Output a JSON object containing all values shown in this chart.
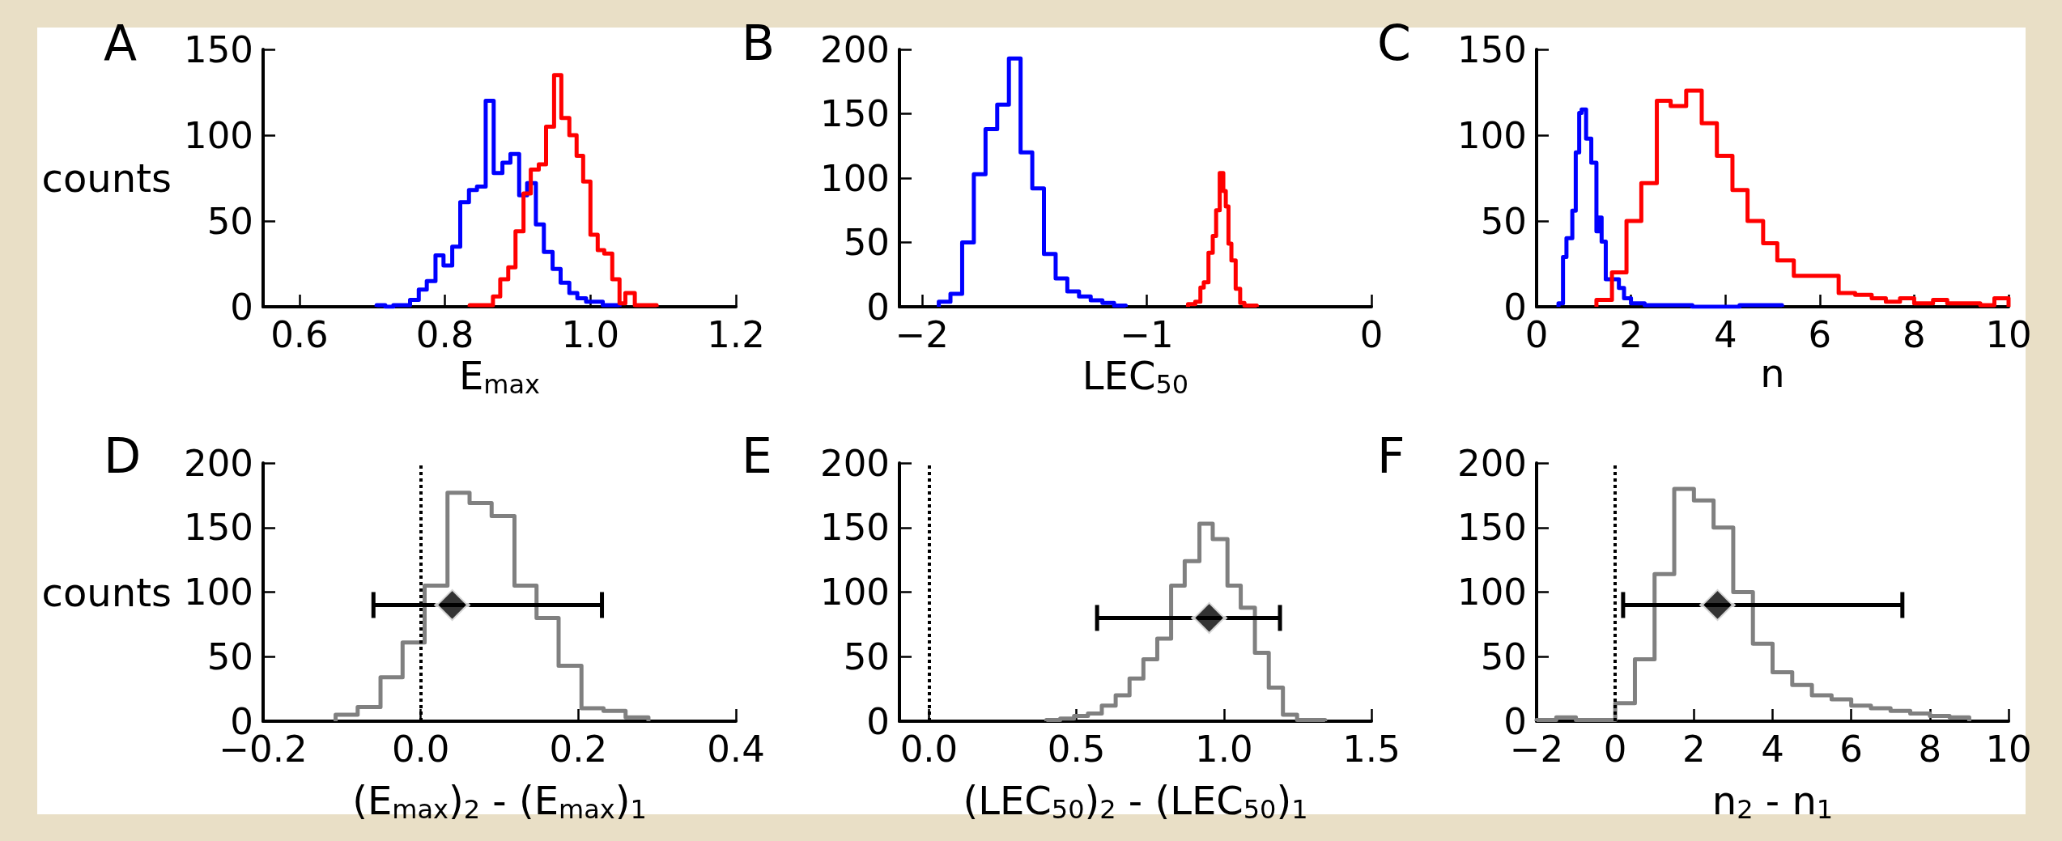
{
  "chart_data": [
    {
      "type": "histogram",
      "title": "A",
      "xlabel": "E$_{max}$",
      "ylabel": "counts",
      "xlim": [
        0.55,
        1.2
      ],
      "xticks": [
        0.6,
        0.8,
        {
          "value": 1,
          "label": "1.0"
        },
        1.2
      ],
      "ylim": [
        0,
        150
      ],
      "yticks": [
        0,
        50,
        100,
        150
      ],
      "bins": [
        0.706,
        0.718,
        0.729,
        0.741,
        0.752,
        0.764,
        0.775,
        0.787,
        0.798,
        0.81,
        0.821,
        0.833,
        0.844,
        0.856,
        0.867,
        0.879,
        0.89,
        0.902,
        0.913,
        0.925,
        0.936,
        0.948,
        0.959,
        0.971,
        0.982,
        0.994,
        1.005,
        1.017,
        1.028,
        1.04
      ],
      "series": [
        {
          "color": "#0000ff",
          "values": [
            1,
            0,
            1,
            1,
            4,
            10,
            15,
            30,
            24,
            35,
            61,
            68,
            70,
            120,
            78,
            84,
            89,
            65,
            72,
            48,
            32,
            22,
            14,
            8,
            5,
            3,
            3,
            1,
            1
          ]
        },
        {
          "color": "#ff0000",
          "bins": [
            0.834,
            0.845,
            0.855,
            0.866,
            0.876,
            0.887,
            0.897,
            0.908,
            0.918,
            0.929,
            0.939,
            0.95,
            0.96,
            0.971,
            0.981,
            0.99,
            1.0,
            1.01,
            1.019,
            1.03,
            1.04,
            1.048,
            1.061,
            1.091
          ],
          "values": [
            1,
            1,
            1,
            6,
            16,
            23,
            44,
            66,
            80,
            83,
            105,
            135,
            110,
            100,
            88,
            73,
            42,
            33,
            31,
            16,
            2,
            8,
            1
          ]
        }
      ]
    },
    {
      "type": "histogram",
      "title": "B",
      "xlabel": "LEC$_{50}$",
      "xlim": [
        -2.1,
        0
      ],
      "xticks": [
        {
          "value": -2,
          "label": "−2"
        },
        {
          "value": -1,
          "label": "−1"
        },
        0
      ],
      "ylim": [
        0,
        200
      ],
      "yticks": [
        0,
        50,
        100,
        150,
        200
      ],
      "bins": [
        -1.925,
        -1.873,
        -1.821,
        -1.769,
        -1.717,
        -1.665,
        -1.613,
        -1.561,
        -1.509,
        -1.457,
        -1.405,
        -1.353,
        -1.301,
        -1.249,
        -1.197,
        -1.145,
        -1.093
      ],
      "series": [
        {
          "color": "#0000ff",
          "values": [
            4,
            10,
            50,
            103,
            138,
            157,
            193,
            120,
            92,
            41,
            22,
            12,
            8,
            5,
            3,
            1
          ]
        },
        {
          "color": "#ff0000",
          "bins": [
            -0.816,
            -0.784,
            -0.761,
            -0.746,
            -0.725,
            -0.706,
            -0.691,
            -0.675,
            -0.659,
            -0.648,
            -0.636,
            -0.623,
            -0.604,
            -0.584,
            -0.565,
            -0.51
          ],
          "values": [
            2,
            4,
            15,
            19,
            42,
            55,
            75,
            104,
            90,
            78,
            49,
            36,
            14,
            3,
            1
          ]
        }
      ]
    },
    {
      "type": "histogram",
      "title": "C",
      "xlabel": "n",
      "xlim": [
        0,
        10
      ],
      "xticks": [
        0,
        2,
        4,
        6,
        8,
        10
      ],
      "ylim": [
        0,
        150
      ],
      "yticks": [
        0,
        50,
        100,
        150
      ],
      "bins": [
        0.464,
        0.56,
        0.633,
        0.757,
        0.83,
        0.903,
        0.954,
        1.049,
        1.159,
        1.268,
        1.32,
        1.378,
        1.466,
        1.634,
        1.744,
        1.853,
        2.0,
        2.29,
        2.8,
        3.3,
        4.3,
        5.2
      ],
      "series": [
        {
          "color": "#0000ff",
          "values": [
            2,
            29,
            40,
            56,
            90,
            113,
            115,
            98,
            84,
            44,
            52,
            38,
            16,
            16,
            11,
            5,
            2,
            1,
            1,
            0,
            1
          ]
        },
        {
          "color": "#ff0000",
          "bins": [
            1.268,
            1.597,
            1.905,
            2.219,
            2.548,
            2.841,
            3.17,
            3.499,
            3.82,
            4.15,
            4.47,
            4.8,
            5.1,
            5.45,
            5.8,
            6.1,
            6.4,
            6.75,
            7.1,
            7.4,
            7.7,
            8.0,
            8.4,
            8.7,
            9.0,
            9.4,
            9.7,
            10.0
          ],
          "values": [
            4,
            20,
            50,
            72,
            120,
            117,
            126,
            107,
            88,
            68,
            50,
            37,
            27,
            18,
            18,
            18,
            8,
            7,
            5,
            3,
            5,
            2,
            4,
            2,
            2,
            1,
            5
          ]
        }
      ]
    },
    {
      "type": "histogram",
      "title": "D",
      "xlabel": "(E$_{max}$)$_{2}$ - (E$_{max}$)$_{1}$",
      "ylabel": "counts",
      "xlim": [
        -0.2,
        0.4
      ],
      "xticks": [
        {
          "value": -0.2,
          "label": "−0.2"
        },
        {
          "value": 0,
          "label": "0.0"
        },
        0.2,
        0.4
      ],
      "ylim": [
        0,
        200
      ],
      "yticks": [
        0,
        50,
        100,
        150,
        200
      ],
      "ref_lines": [
        {
          "axis": "x",
          "value": 0,
          "color": "#000000",
          "line_style": "dotted"
        }
      ],
      "bins": [
        -0.108,
        -0.08,
        -0.051,
        -0.023,
        0.005,
        0.034,
        0.062,
        0.09,
        0.119,
        0.147,
        0.175,
        0.204,
        0.232,
        0.26,
        0.289
      ],
      "series": [
        {
          "color": "#808080",
          "values": [
            5,
            11,
            34,
            61,
            105,
            177,
            169,
            159,
            105,
            80,
            43,
            10,
            8,
            3
          ]
        },
        {
          "type": "scatter",
          "color": "#000000",
          "marker": "diamond",
          "x": [
            0.04
          ],
          "values": [
            90
          ],
          "xerrors": [
            [
              -0.06,
              0.23
            ]
          ]
        }
      ]
    },
    {
      "type": "histogram",
      "title": "E",
      "xlabel": "(LEC$_{50}$)$_{2}$ - (LEC$_{50}$)$_{1}$",
      "xlim": [
        -0.1,
        1.5
      ],
      "xticks": [
        {
          "value": 0,
          "label": "0.0"
        },
        0.5,
        {
          "value": 1,
          "label": "1.0"
        },
        1.5
      ],
      "ylim": [
        0,
        200
      ],
      "yticks": [
        0,
        50,
        100,
        150,
        200
      ],
      "ref_lines": [
        {
          "axis": "x",
          "value": 0,
          "color": "#000000",
          "line_style": "dotted"
        }
      ],
      "bins": [
        0.398,
        0.445,
        0.492,
        0.539,
        0.586,
        0.633,
        0.68,
        0.727,
        0.774,
        0.821,
        0.867,
        0.917,
        0.962,
        1.012,
        1.057,
        1.105,
        1.152,
        1.2,
        1.248,
        1.343
      ],
      "series": [
        {
          "color": "#808080",
          "values": [
            1,
            2,
            4,
            6,
            12,
            20,
            33,
            48,
            64,
            105,
            124,
            153,
            141,
            105,
            88,
            53,
            26,
            5,
            1
          ]
        },
        {
          "type": "scatter",
          "color": "#000000",
          "marker": "diamond",
          "x": [
            0.95
          ],
          "values": [
            80
          ],
          "xerrors": [
            [
              0.57,
              1.19
            ]
          ]
        }
      ]
    },
    {
      "type": "histogram",
      "title": "F",
      "xlabel": "n$_{2}$ - n$_{1}$",
      "xlim": [
        -2,
        10
      ],
      "xticks": [
        {
          "value": -2,
          "label": "−2"
        },
        0,
        2,
        4,
        6,
        8,
        10
      ],
      "ylim": [
        0,
        200
      ],
      "yticks": [
        0,
        50,
        100,
        150,
        200
      ],
      "ref_lines": [
        {
          "axis": "x",
          "value": 0,
          "color": "#000000",
          "line_style": "dotted"
        }
      ],
      "bins": [
        -2,
        -1.5,
        -1,
        -0.5,
        0,
        0.5,
        1,
        1.5,
        2,
        2.5,
        3,
        3.5,
        4,
        4.5,
        5,
        5.5,
        6,
        6.5,
        7,
        7.5,
        8,
        8.5,
        9
      ],
      "series": [
        {
          "color": "#808080",
          "values": [
            1,
            3,
            1,
            1,
            14,
            48,
            114,
            180,
            171,
            150,
            100,
            60,
            38,
            28,
            20,
            17,
            12,
            10,
            8,
            6,
            4,
            3
          ]
        },
        {
          "type": "scatter",
          "color": "#000000",
          "marker": "diamond",
          "x": [
            2.6
          ],
          "values": [
            90
          ],
          "xerrors": [
            [
              0.2,
              7.3
            ]
          ]
        }
      ]
    }
  ]
}
